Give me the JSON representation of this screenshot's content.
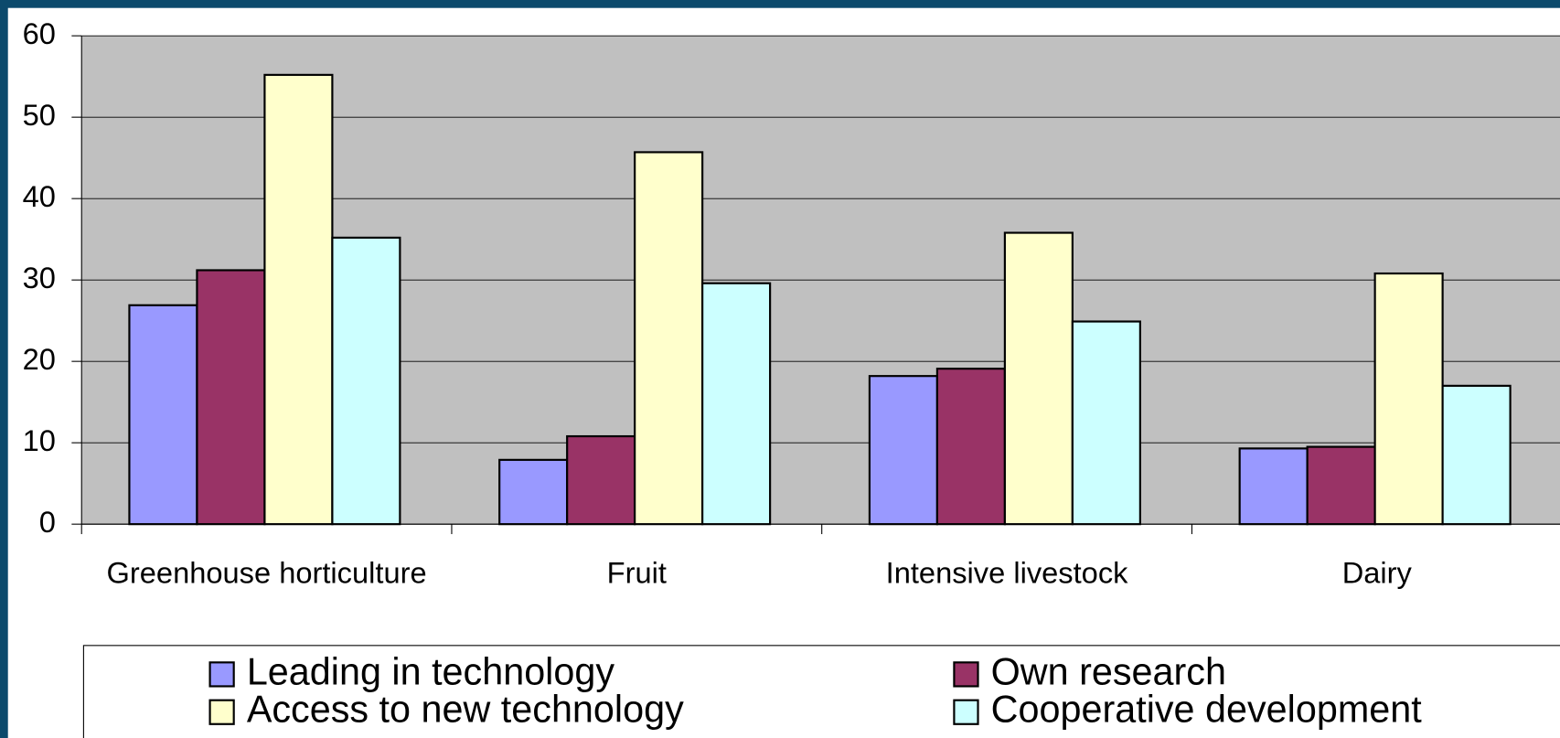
{
  "chart_data": {
    "type": "bar",
    "categories": [
      "Greenhouse horticulture",
      "Fruit",
      "Intensive livestock",
      "Dairy"
    ],
    "series": [
      {
        "name": "Leading in technology",
        "color": "#9999ff",
        "values": [
          26.9,
          7.9,
          18.2,
          9.3
        ]
      },
      {
        "name": "Own research",
        "color": "#993366",
        "values": [
          31.2,
          10.8,
          19.1,
          9.5
        ]
      },
      {
        "name": "Access to new technology",
        "color": "#ffffcc",
        "values": [
          55.2,
          45.7,
          35.8,
          30.8
        ]
      },
      {
        "name": "Cooperative development",
        "color": "#ccffff",
        "values": [
          35.2,
          29.6,
          24.9,
          17.0
        ]
      }
    ],
    "ylim": [
      0,
      60
    ],
    "yticks": [
      0,
      10,
      20,
      30,
      40,
      50,
      60
    ],
    "grid": true,
    "legend": "bottom"
  }
}
